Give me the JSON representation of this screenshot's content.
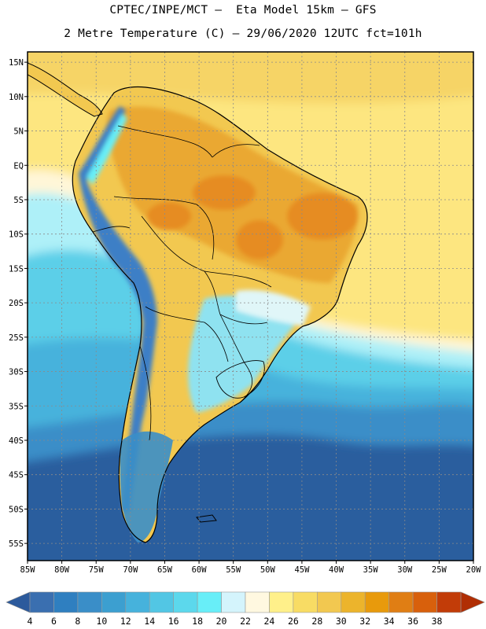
{
  "title": {
    "line1": "CPTEC/INPE/MCT –  Eta Model 15km – GFS",
    "line2": "2 Metre Temperature (C) – 29/06/2020 12UTC fct=101h"
  },
  "map": {
    "lon_range": [
      -85,
      -20
    ],
    "lat_range": [
      -57.5,
      16.5
    ],
    "lon_ticks": [
      -85,
      -80,
      -75,
      -70,
      -65,
      -60,
      -55,
      -50,
      -45,
      -40,
      -35,
      -30,
      -25,
      -20
    ],
    "lon_labels": [
      "85W",
      "80W",
      "75W",
      "70W",
      "65W",
      "60W",
      "55W",
      "50W",
      "45W",
      "40W",
      "35W",
      "30W",
      "25W",
      "20W"
    ],
    "lat_ticks": [
      15,
      10,
      5,
      0,
      -5,
      -10,
      -15,
      -20,
      -25,
      -30,
      -35,
      -40,
      -45,
      -50,
      -55
    ],
    "lat_labels": [
      "15N",
      "10N",
      "5N",
      "EQ",
      "5S",
      "10S",
      "15S",
      "20S",
      "25S",
      "30S",
      "35S",
      "40S",
      "45S",
      "50S",
      "55S"
    ]
  },
  "colorbar": {
    "values": [
      "4",
      "6",
      "8",
      "10",
      "12",
      "14",
      "16",
      "18",
      "20",
      "22",
      "24",
      "26",
      "28",
      "30",
      "32",
      "34",
      "36",
      "38"
    ],
    "colors": [
      "#3a6fb0",
      "#2f7fc0",
      "#3a8ec8",
      "#3c9fd0",
      "#46b2dc",
      "#52c6e4",
      "#5cd8ec",
      "#68eef8",
      "#d4f4fc",
      "#fff8e0",
      "#fff08a",
      "#f8dc64",
      "#f2c850",
      "#ecb42c",
      "#e89a0c",
      "#e07e14",
      "#d8600c",
      "#c23c08"
    ],
    "low_arrow_color": "#2c5a9c",
    "high_arrow_color": "#b02e04"
  },
  "colors": {
    "deep_ocean_south": "#2a5e9e",
    "ocean_mid": "#3a8ec8",
    "ocean_cool": "#46b2dc",
    "ocean_warm": "#5ccfe8",
    "light_cyan": "#aef0f8",
    "pale": "#fff6d8",
    "ocean_tropical": "#fde680",
    "land_warm": "#f2c850",
    "land_hot": "#eaa830",
    "land_hottest": "#e68c20",
    "andes_cold": "#3d7fc6"
  }
}
